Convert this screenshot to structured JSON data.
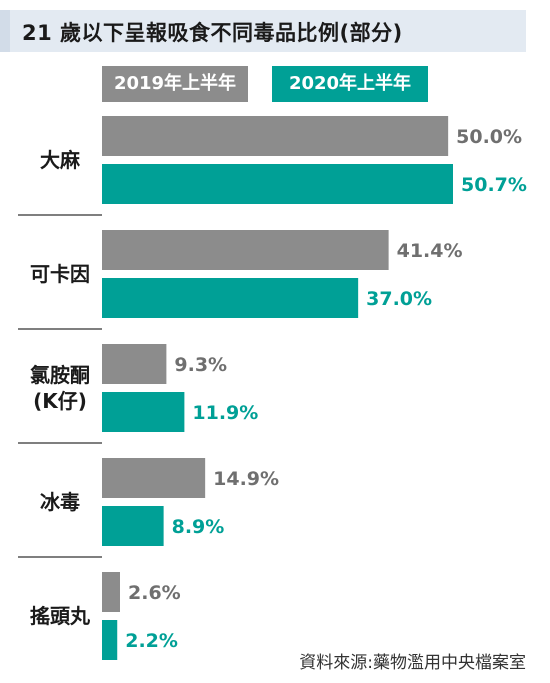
{
  "chart_data": {
    "type": "bar",
    "orientation": "horizontal",
    "title": "21 歲以下呈報吸食不同毒品比例(部分)",
    "categories": [
      {
        "lines": [
          "大麻"
        ]
      },
      {
        "lines": [
          "可卡因"
        ]
      },
      {
        "lines": [
          "氯胺酮",
          "(K仔)"
        ]
      },
      {
        "lines": [
          "冰毒"
        ]
      },
      {
        "lines": [
          "搖頭丸"
        ]
      }
    ],
    "series": [
      {
        "name": "2019年上半年",
        "color": "#8c8c8c",
        "values": [
          50.0,
          41.4,
          9.3,
          14.9,
          2.6
        ],
        "labels": [
          "50.0%",
          "41.4%",
          "9.3%",
          "14.9%",
          "2.6%"
        ]
      },
      {
        "name": "2020年上半年",
        "color": "#00a096",
        "values": [
          50.7,
          37.0,
          11.9,
          8.9,
          2.2
        ],
        "labels": [
          "50.7%",
          "37.0%",
          "11.9%",
          "8.9%",
          "2.2%"
        ]
      }
    ],
    "xlim": [
      0,
      50.7
    ],
    "legend_position": "top",
    "grid": false,
    "source": "資料來源:藥物濫用中央檔案室"
  }
}
